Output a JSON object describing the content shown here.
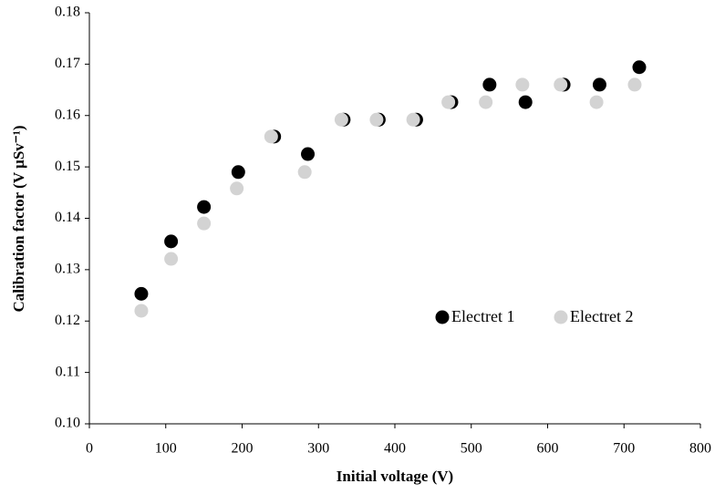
{
  "chart_data": {
    "type": "scatter",
    "x_label": "Initial voltage (V)",
    "y_label": "Calibration factor (V µSv⁻¹)",
    "xlim": [
      0,
      800
    ],
    "xticks": [
      0,
      100,
      200,
      300,
      400,
      500,
      600,
      700,
      800
    ],
    "ylim": [
      0.1,
      0.18
    ],
    "yticks": [
      {
        "value": 0.1,
        "label": "0.10"
      },
      {
        "value": 0.11,
        "label": "0.11"
      },
      {
        "value": 0.12,
        "label": "0.12"
      },
      {
        "value": 0.13,
        "label": "0.13"
      },
      {
        "value": 0.14,
        "label": "0.14"
      },
      {
        "value": 0.15,
        "label": "0.15"
      },
      {
        "value": 0.16,
        "label": "0.16"
      },
      {
        "value": 0.17,
        "label": "0.17"
      },
      {
        "value": 0.18,
        "label": "0.18"
      }
    ],
    "grid": false,
    "legend": "right",
    "series": [
      {
        "name": "Electret 1",
        "color": "#000000",
        "x": [
          68,
          107,
          150,
          195,
          242,
          286,
          333,
          379,
          428,
          474,
          524,
          571,
          621,
          668,
          720
        ],
        "values": [
          0.1253,
          0.1355,
          0.1422,
          0.149,
          0.1559,
          0.1525,
          0.1592,
          0.1592,
          0.1592,
          0.1626,
          0.166,
          0.1626,
          0.166,
          0.166,
          0.1694
        ]
      },
      {
        "name": "Electret 2",
        "color": "#d3d3d3",
        "x": [
          68,
          107,
          150,
          193,
          238,
          282,
          330,
          376,
          424,
          470,
          519,
          567,
          617,
          664,
          714
        ],
        "values": [
          0.122,
          0.1321,
          0.139,
          0.1458,
          0.1559,
          0.149,
          0.1592,
          0.1592,
          0.1592,
          0.1626,
          0.1626,
          0.166,
          0.166,
          0.1626,
          0.166
        ]
      }
    ]
  }
}
